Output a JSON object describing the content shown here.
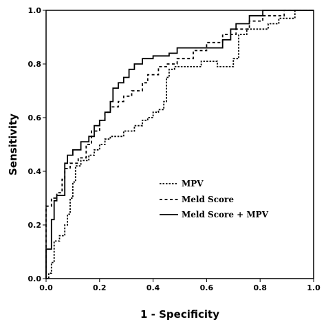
{
  "chart_data": {
    "type": "line",
    "title": "",
    "xlabel": "1 - Specificity",
    "ylabel": "Sensitivity",
    "xlim": [
      0,
      1
    ],
    "ylim": [
      0,
      1
    ],
    "x_ticks": [
      "0.0",
      "0.2",
      "0.4",
      "0.6",
      "0.8",
      "1.0"
    ],
    "y_ticks": [
      "0.0",
      "0.2",
      "0.4",
      "0.6",
      "0.8",
      "1.0"
    ],
    "grid": false,
    "legend_position": "bottom-right",
    "series": [
      {
        "name": "MPV",
        "style": "dotted",
        "points": [
          [
            0,
            0
          ],
          [
            0.01,
            0
          ],
          [
            0.01,
            0.02
          ],
          [
            0.02,
            0.02
          ],
          [
            0.02,
            0.06
          ],
          [
            0.03,
            0.06
          ],
          [
            0.03,
            0.14
          ],
          [
            0.05,
            0.14
          ],
          [
            0.05,
            0.16
          ],
          [
            0.07,
            0.16
          ],
          [
            0.07,
            0.2
          ],
          [
            0.08,
            0.2
          ],
          [
            0.08,
            0.24
          ],
          [
            0.09,
            0.24
          ],
          [
            0.09,
            0.3
          ],
          [
            0.1,
            0.3
          ],
          [
            0.1,
            0.36
          ],
          [
            0.11,
            0.36
          ],
          [
            0.11,
            0.42
          ],
          [
            0.13,
            0.42
          ],
          [
            0.13,
            0.44
          ],
          [
            0.16,
            0.44
          ],
          [
            0.16,
            0.46
          ],
          [
            0.18,
            0.46
          ],
          [
            0.18,
            0.48
          ],
          [
            0.2,
            0.48
          ],
          [
            0.2,
            0.5
          ],
          [
            0.22,
            0.5
          ],
          [
            0.22,
            0.52
          ],
          [
            0.24,
            0.52
          ],
          [
            0.24,
            0.53
          ],
          [
            0.29,
            0.53
          ],
          [
            0.29,
            0.55
          ],
          [
            0.33,
            0.55
          ],
          [
            0.33,
            0.57
          ],
          [
            0.36,
            0.57
          ],
          [
            0.36,
            0.59
          ],
          [
            0.38,
            0.59
          ],
          [
            0.38,
            0.6
          ],
          [
            0.4,
            0.6
          ],
          [
            0.4,
            0.62
          ],
          [
            0.42,
            0.62
          ],
          [
            0.42,
            0.63
          ],
          [
            0.44,
            0.63
          ],
          [
            0.44,
            0.66
          ],
          [
            0.45,
            0.66
          ],
          [
            0.45,
            0.75
          ],
          [
            0.46,
            0.75
          ],
          [
            0.46,
            0.78
          ],
          [
            0.48,
            0.78
          ],
          [
            0.48,
            0.79
          ],
          [
            0.58,
            0.79
          ],
          [
            0.58,
            0.81
          ],
          [
            0.64,
            0.81
          ],
          [
            0.64,
            0.79
          ],
          [
            0.7,
            0.79
          ],
          [
            0.7,
            0.82
          ],
          [
            0.72,
            0.82
          ],
          [
            0.72,
            0.91
          ],
          [
            0.75,
            0.91
          ],
          [
            0.75,
            0.93
          ],
          [
            0.83,
            0.93
          ],
          [
            0.83,
            0.95
          ],
          [
            0.87,
            0.95
          ],
          [
            0.87,
            0.97
          ],
          [
            0.93,
            0.97
          ],
          [
            0.93,
            1.0
          ],
          [
            1.0,
            1.0
          ]
        ]
      },
      {
        "name": "Meld Score",
        "style": "dashed",
        "points": [
          [
            0,
            0
          ],
          [
            0,
            0.27
          ],
          [
            0.02,
            0.27
          ],
          [
            0.02,
            0.3
          ],
          [
            0.04,
            0.3
          ],
          [
            0.04,
            0.32
          ],
          [
            0.06,
            0.32
          ],
          [
            0.06,
            0.37
          ],
          [
            0.07,
            0.37
          ],
          [
            0.07,
            0.41
          ],
          [
            0.09,
            0.41
          ],
          [
            0.09,
            0.43
          ],
          [
            0.12,
            0.43
          ],
          [
            0.12,
            0.45
          ],
          [
            0.15,
            0.45
          ],
          [
            0.15,
            0.5
          ],
          [
            0.17,
            0.5
          ],
          [
            0.17,
            0.55
          ],
          [
            0.2,
            0.55
          ],
          [
            0.2,
            0.59
          ],
          [
            0.22,
            0.59
          ],
          [
            0.22,
            0.62
          ],
          [
            0.24,
            0.62
          ],
          [
            0.24,
            0.64
          ],
          [
            0.27,
            0.64
          ],
          [
            0.27,
            0.66
          ],
          [
            0.29,
            0.66
          ],
          [
            0.29,
            0.68
          ],
          [
            0.32,
            0.68
          ],
          [
            0.32,
            0.7
          ],
          [
            0.36,
            0.7
          ],
          [
            0.36,
            0.73
          ],
          [
            0.38,
            0.73
          ],
          [
            0.38,
            0.76
          ],
          [
            0.42,
            0.76
          ],
          [
            0.42,
            0.79
          ],
          [
            0.45,
            0.79
          ],
          [
            0.45,
            0.8
          ],
          [
            0.49,
            0.8
          ],
          [
            0.49,
            0.82
          ],
          [
            0.55,
            0.82
          ],
          [
            0.55,
            0.85
          ],
          [
            0.6,
            0.85
          ],
          [
            0.6,
            0.88
          ],
          [
            0.66,
            0.88
          ],
          [
            0.66,
            0.91
          ],
          [
            0.71,
            0.91
          ],
          [
            0.71,
            0.93
          ],
          [
            0.76,
            0.93
          ],
          [
            0.76,
            0.96
          ],
          [
            0.81,
            0.96
          ],
          [
            0.81,
            0.98
          ],
          [
            0.89,
            0.98
          ],
          [
            0.89,
            1.0
          ],
          [
            1.0,
            1.0
          ]
        ]
      },
      {
        "name": "Meld Score + MPV",
        "style": "solid",
        "points": [
          [
            0,
            0
          ],
          [
            0,
            0.11
          ],
          [
            0.02,
            0.11
          ],
          [
            0.02,
            0.22
          ],
          [
            0.03,
            0.22
          ],
          [
            0.03,
            0.29
          ],
          [
            0.04,
            0.29
          ],
          [
            0.04,
            0.31
          ],
          [
            0.07,
            0.31
          ],
          [
            0.07,
            0.38
          ],
          [
            0.07,
            0.43
          ],
          [
            0.08,
            0.43
          ],
          [
            0.08,
            0.46
          ],
          [
            0.1,
            0.46
          ],
          [
            0.1,
            0.48
          ],
          [
            0.13,
            0.48
          ],
          [
            0.13,
            0.51
          ],
          [
            0.16,
            0.51
          ],
          [
            0.16,
            0.53
          ],
          [
            0.18,
            0.53
          ],
          [
            0.18,
            0.57
          ],
          [
            0.2,
            0.57
          ],
          [
            0.2,
            0.59
          ],
          [
            0.22,
            0.59
          ],
          [
            0.22,
            0.62
          ],
          [
            0.24,
            0.62
          ],
          [
            0.24,
            0.66
          ],
          [
            0.25,
            0.66
          ],
          [
            0.25,
            0.71
          ],
          [
            0.27,
            0.71
          ],
          [
            0.27,
            0.73
          ],
          [
            0.29,
            0.73
          ],
          [
            0.29,
            0.75
          ],
          [
            0.31,
            0.75
          ],
          [
            0.31,
            0.78
          ],
          [
            0.33,
            0.78
          ],
          [
            0.33,
            0.8
          ],
          [
            0.36,
            0.8
          ],
          [
            0.36,
            0.82
          ],
          [
            0.4,
            0.82
          ],
          [
            0.4,
            0.83
          ],
          [
            0.46,
            0.83
          ],
          [
            0.46,
            0.84
          ],
          [
            0.49,
            0.84
          ],
          [
            0.49,
            0.86
          ],
          [
            0.66,
            0.86
          ],
          [
            0.66,
            0.89
          ],
          [
            0.69,
            0.89
          ],
          [
            0.69,
            0.93
          ],
          [
            0.71,
            0.93
          ],
          [
            0.71,
            0.95
          ],
          [
            0.76,
            0.95
          ],
          [
            0.76,
            0.98
          ],
          [
            0.81,
            0.98
          ],
          [
            0.81,
            1.0
          ],
          [
            1.0,
            1.0
          ]
        ]
      }
    ]
  }
}
